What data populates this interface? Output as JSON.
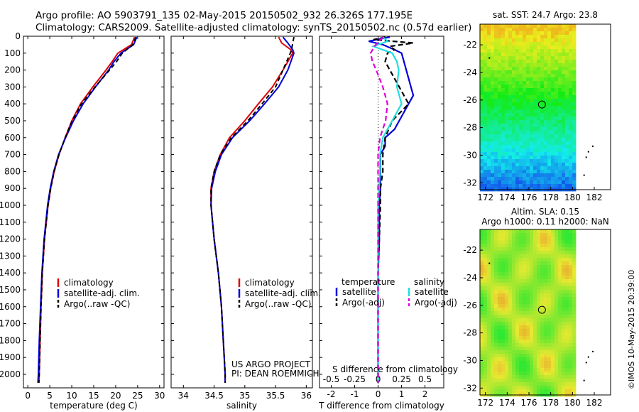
{
  "header": {
    "line1": "Argo profile: AO 5903791_135 02-May-2015 20150502_932 26.326S 177.195E",
    "line2": "Climatology: CARS2009. Satellite-adjusted climatology: synTS_20150502.nc (0.57d earlier)"
  },
  "colors": {
    "climatology": "#dd0000",
    "satellite": "#0000dd",
    "argo": "#000000",
    "sal_satellite": "#22dddd",
    "sal_argo": "#dd00dd"
  },
  "chart_data": [
    {
      "type": "line",
      "name": "temperature",
      "xlabel": "temperature (deg C)",
      "ylabel": "",
      "xlim": [
        -1,
        31
      ],
      "ylim": [
        2080,
        0
      ],
      "xticks": [
        0,
        5,
        10,
        15,
        20,
        25,
        30
      ],
      "yticks": [
        0,
        100,
        200,
        300,
        400,
        500,
        600,
        700,
        800,
        900,
        1000,
        1100,
        1200,
        1300,
        1400,
        1500,
        1600,
        1700,
        1800,
        1900,
        2000
      ],
      "legend": [
        "climatology",
        "satellite-adj. clim.",
        "Argo(..raw -QC)"
      ],
      "legend_position": "lower-center",
      "series": [
        {
          "name": "climatology",
          "depth": [
            5,
            50,
            100,
            150,
            200,
            300,
            400,
            500,
            600,
            700,
            800,
            900,
            1000,
            1200,
            1400,
            1600,
            1800,
            2000,
            2050
          ],
          "values": [
            24.3,
            23.6,
            20.5,
            19.2,
            17.8,
            14.8,
            12.0,
            10.0,
            8.5,
            7.1,
            6.0,
            5.2,
            4.6,
            3.8,
            3.3,
            3.0,
            2.8,
            2.6,
            2.5
          ]
        },
        {
          "name": "satellite-adj. clim.",
          "depth": [
            5,
            50,
            100,
            150,
            200,
            300,
            400,
            500,
            600,
            700,
            800,
            900,
            1000,
            1200,
            1400,
            1600,
            1800,
            2000,
            2050
          ],
          "values": [
            24.8,
            24.1,
            21.2,
            19.6,
            18.4,
            15.4,
            12.6,
            10.4,
            8.6,
            7.0,
            5.9,
            5.1,
            4.5,
            3.7,
            3.2,
            2.9,
            2.6,
            2.4,
            2.3
          ]
        },
        {
          "name": "Argo(..raw -QC)",
          "depth": [
            5,
            50,
            100,
            150,
            200,
            300,
            400,
            500,
            600,
            700,
            800,
            900,
            1000,
            1200,
            1400,
            1600,
            1800,
            2000,
            2050
          ],
          "values": [
            24.6,
            23.9,
            21.5,
            20.2,
            18.6,
            15.3,
            12.2,
            10.1,
            8.5,
            7.1,
            6.0,
            5.2,
            4.6,
            3.8,
            3.3,
            3.0,
            2.8,
            2.6,
            2.5
          ]
        }
      ]
    },
    {
      "type": "line",
      "name": "salinity",
      "xlabel": "salinity",
      "ylabel": "",
      "xlim": [
        33.8,
        36.1
      ],
      "ylim": [
        2080,
        0
      ],
      "xticks": [
        34,
        34.5,
        35,
        35.5,
        36
      ],
      "legend": [
        "climatology",
        "satellite-adj. clim.",
        "Argo(..raw -QC)"
      ],
      "legend_position": "lower-center",
      "annotation": [
        "US ARGO PROJECT",
        "PI: DEAN ROEMMICH"
      ],
      "series": [
        {
          "name": "climatology",
          "depth": [
            5,
            40,
            80,
            100,
            150,
            200,
            300,
            400,
            500,
            600,
            700,
            800,
            900,
            1000,
            1200,
            1400,
            1600,
            1800,
            2000,
            2050
          ],
          "values": [
            35.55,
            35.6,
            35.75,
            35.78,
            35.7,
            35.62,
            35.45,
            35.22,
            35.0,
            34.75,
            34.6,
            34.5,
            34.45,
            34.45,
            34.5,
            34.57,
            34.62,
            34.65,
            34.68,
            34.68
          ]
        },
        {
          "name": "satellite-adj. clim.",
          "depth": [
            5,
            40,
            80,
            100,
            150,
            200,
            300,
            400,
            500,
            600,
            700,
            800,
            900,
            1000,
            1200,
            1400,
            1600,
            1800,
            2000,
            2050
          ],
          "values": [
            35.62,
            35.7,
            35.78,
            35.8,
            35.75,
            35.7,
            35.55,
            35.32,
            35.08,
            34.8,
            34.62,
            34.52,
            34.46,
            34.45,
            34.5,
            34.57,
            34.62,
            34.65,
            34.68,
            34.68
          ]
        },
        {
          "name": "Argo(..raw -QC)",
          "depth": [
            5,
            40,
            80,
            100,
            150,
            200,
            300,
            400,
            500,
            600,
            700,
            800,
            900,
            1000,
            1200,
            1400,
            1600,
            1800,
            2000,
            2050
          ],
          "values": [
            35.8,
            35.78,
            35.76,
            35.74,
            35.68,
            35.62,
            35.5,
            35.28,
            35.05,
            34.78,
            34.6,
            34.5,
            34.45,
            34.45,
            34.5,
            34.57,
            34.62,
            34.65,
            34.68,
            34.68
          ]
        }
      ]
    },
    {
      "type": "line",
      "name": "difference",
      "xlabel": "T difference from climatology",
      "xlabel_top": "S difference from climatology",
      "xlim_T": [
        -2.5,
        2.8
      ],
      "xticks_T": [
        -2,
        -1,
        0,
        1,
        2
      ],
      "xticks_S": [
        -0.5,
        -0.25,
        0,
        0.25,
        0.5
      ],
      "xtick_labels_S": [
        "-0.5",
        "-0.25",
        "0",
        "0.25",
        "0.5"
      ],
      "ylim": [
        2080,
        0
      ],
      "legend_titles": [
        "temperature",
        "salinity"
      ],
      "legend": [
        "satellite",
        "Argo(-adj)",
        "satellite",
        "Argo(-adj)"
      ],
      "series": [
        {
          "name": "temperature satellite",
          "depth": [
            5,
            30,
            50,
            80,
            100,
            150,
            200,
            300,
            350,
            400,
            450,
            500,
            550,
            600,
            650,
            700,
            800,
            900,
            1000,
            1200,
            1400,
            1600,
            1800,
            2000,
            2050
          ],
          "values": [
            0.5,
            -0.4,
            0.2,
            0.7,
            1.0,
            1.1,
            1.2,
            1.4,
            1.5,
            1.3,
            1.1,
            0.9,
            0.7,
            0.3,
            0.3,
            0.1,
            0.1,
            0.1,
            0.05,
            0.05,
            0.0,
            0.0,
            0.0,
            0.0,
            0.0
          ]
        },
        {
          "name": "temperature Argo(-adj)",
          "depth": [
            5,
            20,
            40,
            60,
            80,
            100,
            150,
            200,
            300,
            400,
            500,
            600,
            700,
            800,
            900,
            1000,
            1200,
            1400,
            1600,
            1800,
            2000,
            2050
          ],
          "values": [
            0.3,
            -0.2,
            1.5,
            0.5,
            0.7,
            0.4,
            0.3,
            0.5,
            0.9,
            1.3,
            0.6,
            0.3,
            0.2,
            0.2,
            0.1,
            0.1,
            0.05,
            0.0,
            0.0,
            0.0,
            0.0,
            0.0
          ]
        },
        {
          "name": "salinity satellite",
          "depth": [
            5,
            30,
            60,
            100,
            150,
            200,
            300,
            400,
            500,
            600,
            700,
            800,
            900,
            1000,
            1200,
            1400,
            1600,
            1800,
            2000,
            2050
          ],
          "values": [
            0.05,
            0.1,
            -0.05,
            0.15,
            0.2,
            0.22,
            0.2,
            0.25,
            0.15,
            0.05,
            0.02,
            0.02,
            0.01,
            0.0,
            0.0,
            0.0,
            0.0,
            0.0,
            0.0,
            0.0
          ]
        },
        {
          "name": "salinity Argo(-adj)",
          "depth": [
            5,
            60,
            100,
            150,
            200,
            300,
            400,
            500,
            600,
            700,
            800,
            900,
            1000,
            1200,
            1400,
            1600,
            1800,
            2000,
            2050
          ],
          "values": [
            0.05,
            -0.04,
            -0.08,
            -0.06,
            -0.02,
            0.05,
            0.1,
            0.08,
            0.02,
            0.0,
            0.0,
            0.0,
            0.0,
            0.0,
            0.0,
            0.0,
            0.0,
            0.0,
            0.0
          ]
        }
      ]
    },
    {
      "type": "heatmap",
      "name": "sst_map",
      "title": "sat. SST: 24.7  Argo: 23.8",
      "xticks": [
        172,
        174,
        176,
        178,
        180,
        182
      ],
      "yticks": [
        -22,
        -24,
        -26,
        -28,
        -30,
        -32
      ],
      "xlim": [
        171.5,
        183.5
      ],
      "ylim": [
        -32.5,
        -20.5
      ],
      "marker": {
        "lon": 177.195,
        "lat": -26.326
      }
    },
    {
      "type": "heatmap",
      "name": "sla_map",
      "title": "Altim. SLA: 0.15",
      "subtitle": "Argo h1000: 0.11 h2000: NaN",
      "xticks": [
        172,
        174,
        176,
        178,
        180,
        182
      ],
      "yticks": [
        -22,
        -24,
        -26,
        -28,
        -30,
        -32
      ],
      "xlim": [
        171.5,
        183.5
      ],
      "ylim": [
        -32.5,
        -20.5
      ],
      "marker": {
        "lon": 177.195,
        "lat": -26.326
      }
    }
  ],
  "footer": {
    "stamp": "©IMOS 10-May-2015 20:39:00"
  }
}
